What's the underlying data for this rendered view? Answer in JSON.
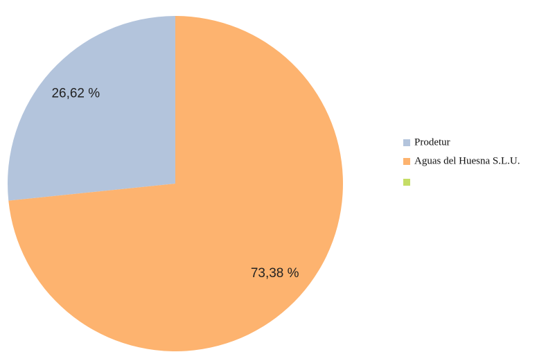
{
  "chart_data": {
    "type": "pie",
    "categories": [
      "Prodetur",
      "Aguas del Huesna S.L.U.",
      null
    ],
    "values": [
      26.62,
      73.38,
      0
    ],
    "value_labels": [
      "26,62 %",
      "73,38 %",
      null
    ],
    "colors": [
      "#b3c4dc",
      "#fdb36f",
      "#c5dd66"
    ]
  }
}
